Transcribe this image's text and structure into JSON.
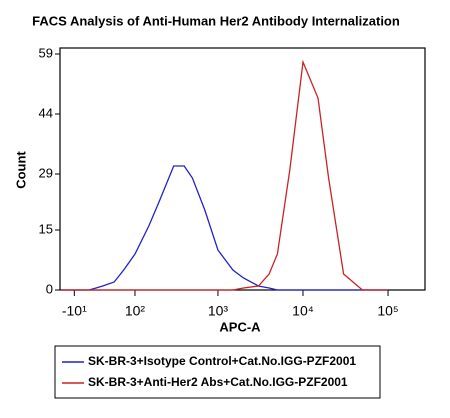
{
  "chart_data": {
    "type": "line",
    "title": "FACS Analysis of Anti-Human Her2 Antibody Internalization",
    "x_label": "APC-A",
    "y_label": "Count",
    "xscale": "biexponential",
    "x": [
      -30,
      -20,
      -10,
      0,
      10,
      20,
      30,
      50,
      70,
      100,
      150,
      200,
      300,
      400,
      500,
      700,
      1000,
      1500,
      2000,
      3000,
      4000,
      5000,
      7000,
      10000,
      15000,
      20000,
      30000,
      50000,
      100000
    ],
    "series": [
      {
        "name": "SK-BR-3+Isotype Control+Cat.No.IGG-PZF2001",
        "color": "#2222cc",
        "values": [
          0,
          0,
          0,
          0,
          0,
          0.5,
          1,
          2,
          5,
          9,
          16,
          22,
          31,
          31,
          28,
          20,
          10,
          5,
          3,
          1,
          0.5,
          0,
          0,
          0,
          0,
          0,
          0,
          0,
          0
        ]
      },
      {
        "name": "SK-BR-3+Anti-Her2 Abs+Cat.No.IGG-PZF2001",
        "color": "#cc2222",
        "values": [
          0,
          0,
          0,
          0,
          0,
          0,
          0,
          0,
          0,
          0,
          0,
          0,
          0,
          0,
          0,
          0,
          0,
          0,
          0.5,
          1,
          4,
          9,
          30,
          57,
          48,
          28,
          4,
          0,
          0
        ]
      }
    ],
    "xlim": [
      -31,
      272000
    ],
    "xticks": [
      {
        "value": -10,
        "label": "-10¹"
      },
      {
        "value": 100,
        "label": "10²"
      },
      {
        "value": 1000,
        "label": "10³"
      },
      {
        "value": 10000,
        "label": "10⁴"
      },
      {
        "value": 100000,
        "label": "10⁵"
      }
    ],
    "ylim": [
      0,
      60.5
    ],
    "yticks": [
      0,
      15,
      29,
      44,
      59
    ],
    "grid": false
  }
}
